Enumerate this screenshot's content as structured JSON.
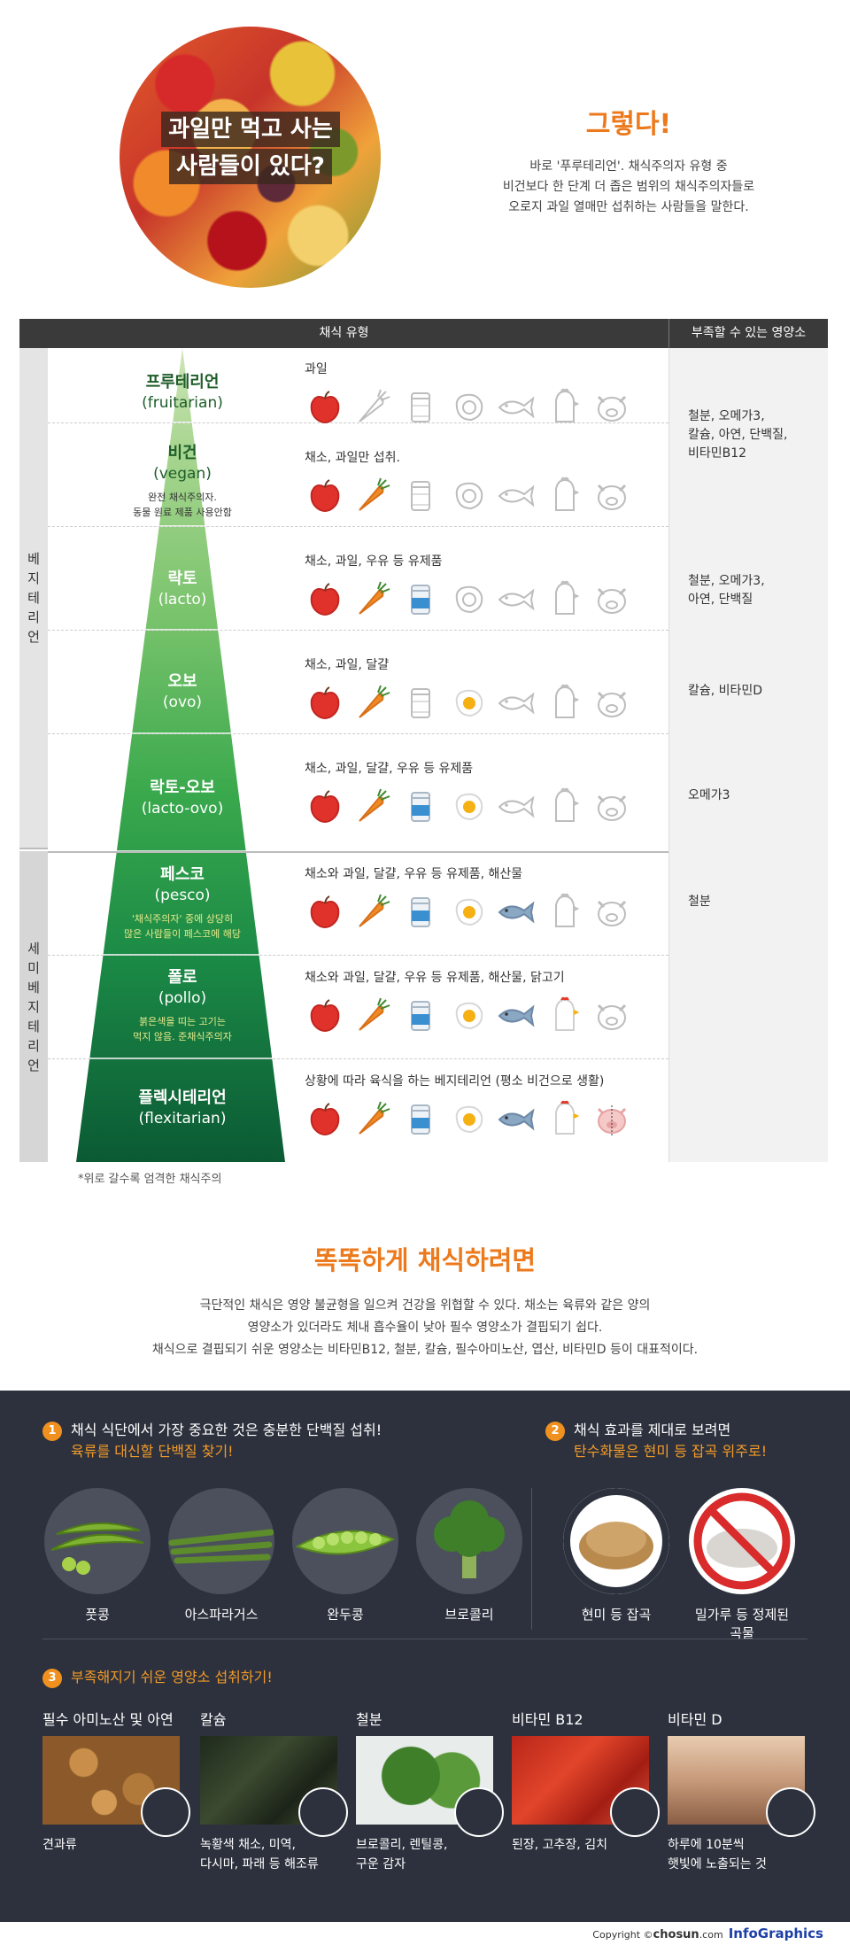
{
  "hero": {
    "title_line1": "과일만 먹고 사는",
    "title_line2": "사람들이 있다?",
    "headline": "그렇다!",
    "desc_line1": "바로 '푸루테리언'. 채식주의자 유형 중",
    "desc_line2": "비건보다 한 단계 더 좁은 범위의 채식주의자들로",
    "desc_line3": "오로지 과일 열매만 섭취하는 사람들을 말한다."
  },
  "table": {
    "header_type": "채식 유형",
    "header_nutrient": "부족할 수 있는 영양소",
    "group_vegetarian": "베지테리언",
    "group_semi": "세미베지테리언",
    "rows": [
      {
        "kr": "프루테리언",
        "en": "(fruitarian)",
        "note": "",
        "desc": "과일"
      },
      {
        "kr": "비건",
        "en": "(vegan)",
        "note": "완전 채식주의자.\n동물 원료 제품 사용안함",
        "desc": "채소, 과일만 섭취."
      },
      {
        "kr": "락토",
        "en": "(lacto)",
        "note": "",
        "desc": "채소, 과일, 우유 등 유제품"
      },
      {
        "kr": "오보",
        "en": "(ovo)",
        "note": "",
        "desc": "채소, 과일, 달걀"
      },
      {
        "kr": "락토-오보",
        "en": "(lacto-ovo)",
        "note": "",
        "desc": "채소, 과일, 달걀, 우유 등 유제품"
      },
      {
        "kr": "페스코",
        "en": "(pesco)",
        "note": "'채식주의자' 중에 상당히\n많은 사람들이 페스코에 해당",
        "desc": "채소와 과일, 달걀, 우유 등 유제품, 해산물"
      },
      {
        "kr": "폴로",
        "en": "(pollo)",
        "note": "붉은색을 띠는 고기는\n먹지 않음. 준채식주의자",
        "desc": "채소와 과일, 달걀, 우유 등 유제품, 해산물, 닭고기"
      },
      {
        "kr": "플렉시테리언",
        "en": "(flexitarian)",
        "note": "",
        "desc": "상황에 따라 육식을 하는 베지테리언 (평소 비건으로 생활)"
      }
    ],
    "nutrients": [
      "철분, 오메가3,\n칼슘, 아연, 단백질,\n비타민B12",
      "철분, 오메가3,\n아연, 단백질",
      "칼슘, 비타민D",
      "오메가3",
      "철분"
    ],
    "footnote": "*위로 갈수록 엄격한 채식주의"
  },
  "section2": {
    "title": "똑똑하게 채식하려면",
    "line1": "극단적인 채식은 영양 불균형을 일으켜 건강을 위협할 수 있다. 채소는 육류와 같은 양의",
    "line2": "영양소가 있더라도 체내 흡수율이 낮아 필수 영양소가 결핍되기 쉽다.",
    "line3": "채식으로 결핍되기 쉬운 영양소는 비타민B12, 철분, 칼슘, 필수아미노산, 엽산, 비타민D 등이 대표적이다."
  },
  "tips": {
    "tip1_num": "1",
    "tip1_title": "채식 식단에서 가장 중요한 것은 충분한 단백질 섭취!",
    "tip1_sub": "육류를 대신할 단백질 찾기!",
    "tip1_foods": [
      "풋콩",
      "아스파라거스",
      "완두콩",
      "브로콜리"
    ],
    "tip2_num": "2",
    "tip2_title": "채식 효과를 제대로 보려면",
    "tip2_sub": "탄수화물은 현미 등 잡곡 위주로!",
    "tip2_foods": [
      "현미 등 잡곡",
      "밀가루 등 정제된 곡물"
    ],
    "tip3_num": "3",
    "tip3_title": "부족해지기 쉬운 영양소 섭취하기!",
    "nutrients": [
      {
        "title": "필수 아미노산 및 아연",
        "caption": "견과류"
      },
      {
        "title": "칼슘",
        "caption": "녹황색 채소, 미역,\n다시마, 파래 등 해조류"
      },
      {
        "title": "철분",
        "caption": "브로콜리, 렌틸콩,\n구운 감자"
      },
      {
        "title": "비타민 B12",
        "caption": "된장, 고추장, 김치"
      },
      {
        "title": "비타민 D",
        "caption": "하루에 10분씩\n햇빛에 노출되는 것"
      }
    ]
  },
  "footer": {
    "copyright": "Copyright ©",
    "brand": "chosun",
    "domain": ".com",
    "logo": "InfoGraphics"
  }
}
